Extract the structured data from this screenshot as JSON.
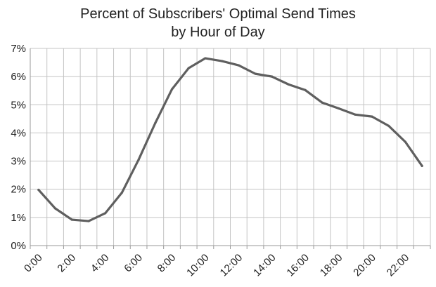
{
  "chart_data": {
    "type": "line",
    "title_lines": [
      "Percent of Subscribers' Optimal Send Times",
      "by Hour of Day"
    ],
    "xlabel": "",
    "ylabel": "",
    "x": [
      0,
      1,
      2,
      3,
      4,
      5,
      6,
      7,
      8,
      9,
      10,
      11,
      12,
      13,
      14,
      15,
      16,
      17,
      18,
      19,
      20,
      21,
      22,
      23
    ],
    "x_tick_labels": [
      "0:00",
      "2:00",
      "4:00",
      "6:00",
      "8:00",
      "10:00",
      "12:00",
      "14:00",
      "16:00",
      "18:00",
      "20:00",
      "22:00"
    ],
    "x_tick_values": [
      0,
      2,
      4,
      6,
      8,
      10,
      12,
      14,
      16,
      18,
      20,
      22
    ],
    "y_tick_labels": [
      "0%",
      "1%",
      "2%",
      "3%",
      "4%",
      "5%",
      "6%",
      "7%"
    ],
    "y_tick_values": [
      0,
      1,
      2,
      3,
      4,
      5,
      6,
      7
    ],
    "ylim": [
      0,
      7
    ],
    "grid": true,
    "legend": "none",
    "series": [
      {
        "values": [
          1.98,
          1.32,
          0.92,
          0.87,
          1.15,
          1.88,
          3.05,
          4.35,
          5.55,
          6.3,
          6.65,
          6.55,
          6.4,
          6.1,
          6.0,
          5.72,
          5.52,
          5.08,
          4.87,
          4.65,
          4.58,
          4.25,
          3.68,
          2.83
        ],
        "color": "#5f5f5f"
      }
    ],
    "colors": {
      "grid": "#c4c4c4",
      "axis": "#9a9a9a",
      "text": "#222222"
    }
  }
}
